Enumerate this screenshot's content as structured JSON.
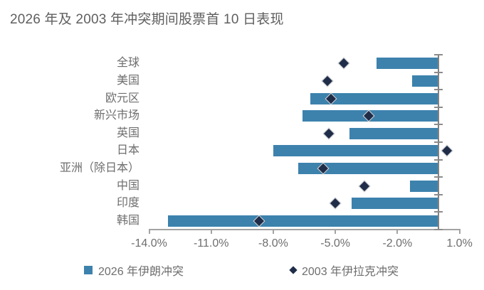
{
  "title": "2026 年及 2003 年冲突期间股票首 10 日表现",
  "legend": [
    {
      "label": "2026 年伊朗冲突",
      "marker": "square-icon",
      "color": "#3d82ad"
    },
    {
      "label": "2003 年伊拉克冲突",
      "marker": "diamond-icon",
      "color": "#1f2d49"
    }
  ],
  "colors": {
    "bar": "#3d82ad",
    "diamond": "#1f2d49",
    "text": "#6e6e6e",
    "axis": "#a3a3a3",
    "zero_axis": "#818181"
  },
  "chart_data": {
    "type": "bar",
    "orientation": "horizontal",
    "title": "2026 年及 2003 年冲突期间股票首 10 日表现",
    "categories": [
      "全球",
      "美国",
      "欧元区",
      "新兴市场",
      "英国",
      "日本",
      "亚洲（除日本）",
      "中国",
      "印度",
      "韩国"
    ],
    "series": [
      {
        "name": "2026 年伊朗冲突",
        "type": "bar",
        "values": [
          -3.0,
          -1.3,
          -6.2,
          -6.6,
          -4.3,
          -8.0,
          -6.8,
          -1.4,
          -4.2,
          -13.1
        ]
      },
      {
        "name": "2003 年伊拉克冲突",
        "type": "scatter",
        "marker": "diamond",
        "values": [
          -4.6,
          -5.4,
          -5.2,
          -3.4,
          -5.3,
          0.4,
          -5.6,
          -3.6,
          -5.0,
          -8.7
        ]
      }
    ],
    "unit": "%",
    "xlim": [
      -14,
      1
    ],
    "x_ticks": [
      {
        "value": -14,
        "label": "-14.0%"
      },
      {
        "value": -11,
        "label": "-11.0%"
      },
      {
        "value": -8,
        "label": "-8.0%"
      },
      {
        "value": -5,
        "label": "-5.0%"
      },
      {
        "value": -2,
        "label": "-2.0%"
      },
      {
        "value": 1,
        "label": "1.0%"
      }
    ],
    "grid": false,
    "legend_position": "bottom"
  }
}
